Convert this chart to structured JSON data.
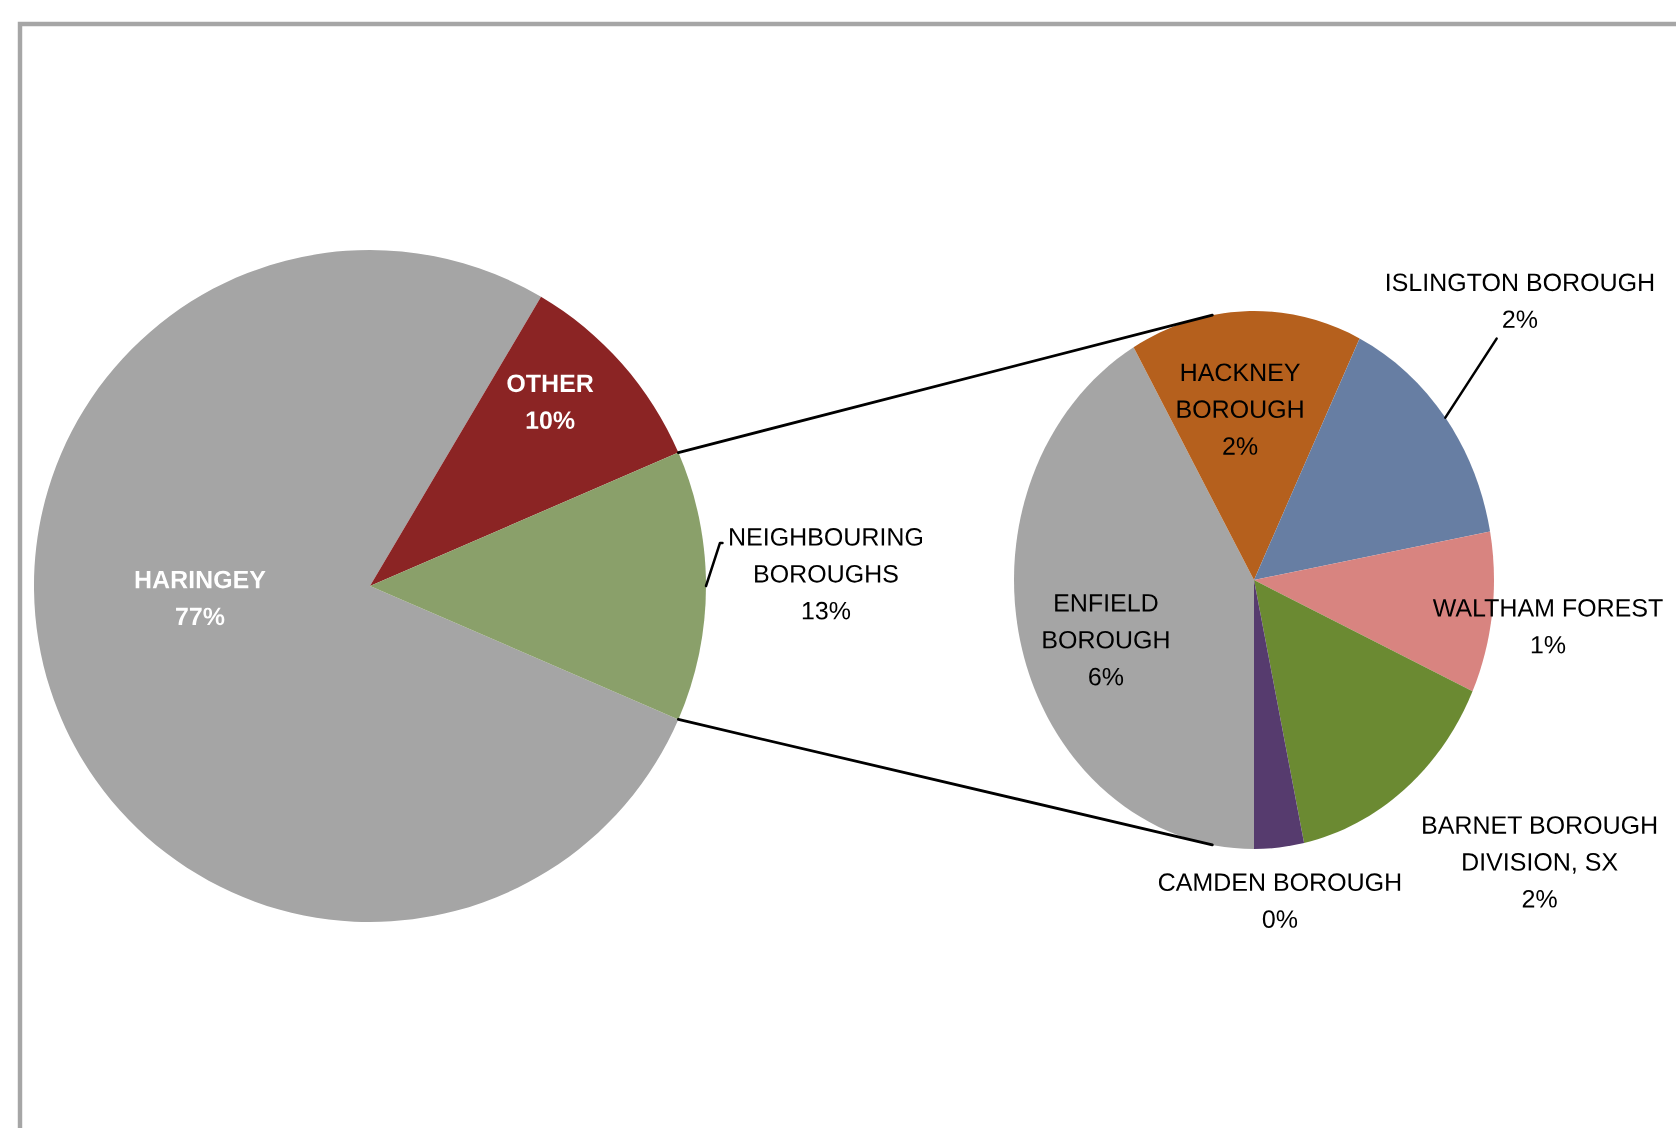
{
  "chart_data": [
    {
      "type": "pie",
      "categories": [
        "HARINGEY",
        "OTHER",
        "NEIGHBOURING\nBOROUGHS"
      ],
      "values": [
        77,
        10,
        13
      ],
      "colors": [
        "#a5a5a5",
        "#8b2424",
        "#8aa06a"
      ],
      "value_labels": [
        "77%",
        "10%",
        "13%"
      ]
    },
    {
      "type": "pie",
      "categories": [
        "ENFIELD\nBOROUGH",
        "HACKNEY\nBOROUGH",
        "ISLINGTON BOROUGH",
        "WALTHAM FOREST",
        "BARNET BOROUGH\nDIVISION, SX",
        "CAMDEN BOROUGH"
      ],
      "values": [
        5.6,
        2.1,
        2.0,
        1.3,
        2.0,
        0.45
      ],
      "colors": [
        "#a5a5a5",
        "#b5601d",
        "#677ea3",
        "#d88480",
        "#6b8a32",
        "#563b6e"
      ],
      "value_labels": [
        "6%",
        "2%",
        "2%",
        "1%",
        "2%",
        "0%"
      ]
    }
  ]
}
